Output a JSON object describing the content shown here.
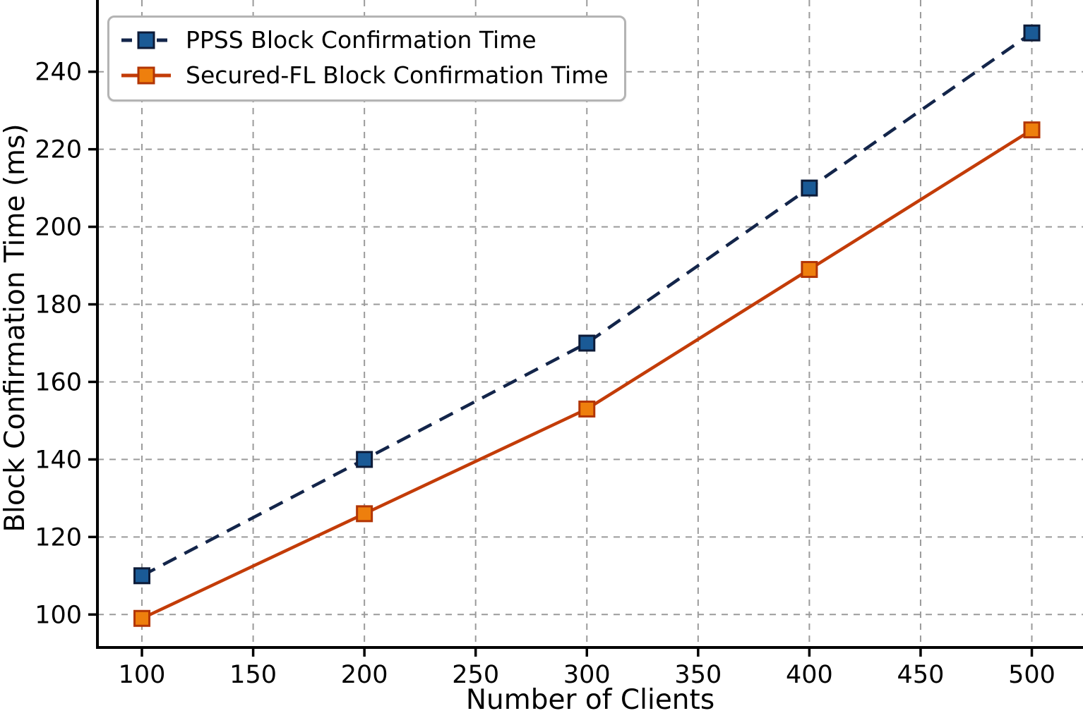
{
  "chart_data": {
    "type": "line",
    "title": "",
    "xlabel": "Number of Clients",
    "ylabel": "Block Confirmation Time (ms)",
    "x": [
      100,
      200,
      300,
      400,
      500
    ],
    "series": [
      {
        "name": "PPSS Block Confirmation Time",
        "values": [
          110,
          140,
          170,
          210,
          250
        ],
        "line_color": "#13254a",
        "line_style": "dashed",
        "marker": "square",
        "marker_fill": "#1a5a96",
        "marker_edge": "#0d1b38"
      },
      {
        "name": "Secured-FL Block Confirmation Time",
        "values": [
          99,
          126,
          153,
          189,
          225
        ],
        "line_color": "#c33c08",
        "line_style": "solid",
        "marker": "square",
        "marker_fill": "#ee7f0d",
        "marker_edge": "#b23505"
      }
    ],
    "xticks": [
      100,
      150,
      200,
      250,
      300,
      350,
      400,
      450,
      500
    ],
    "yticks": [
      100,
      120,
      140,
      160,
      180,
      200,
      220,
      240
    ],
    "xlim": [
      80,
      523
    ],
    "ylim": [
      91.5,
      258.5
    ],
    "grid": true,
    "grid_color": "#9b9b9b",
    "axis_color": "#000000",
    "legend_position": "upper left"
  }
}
